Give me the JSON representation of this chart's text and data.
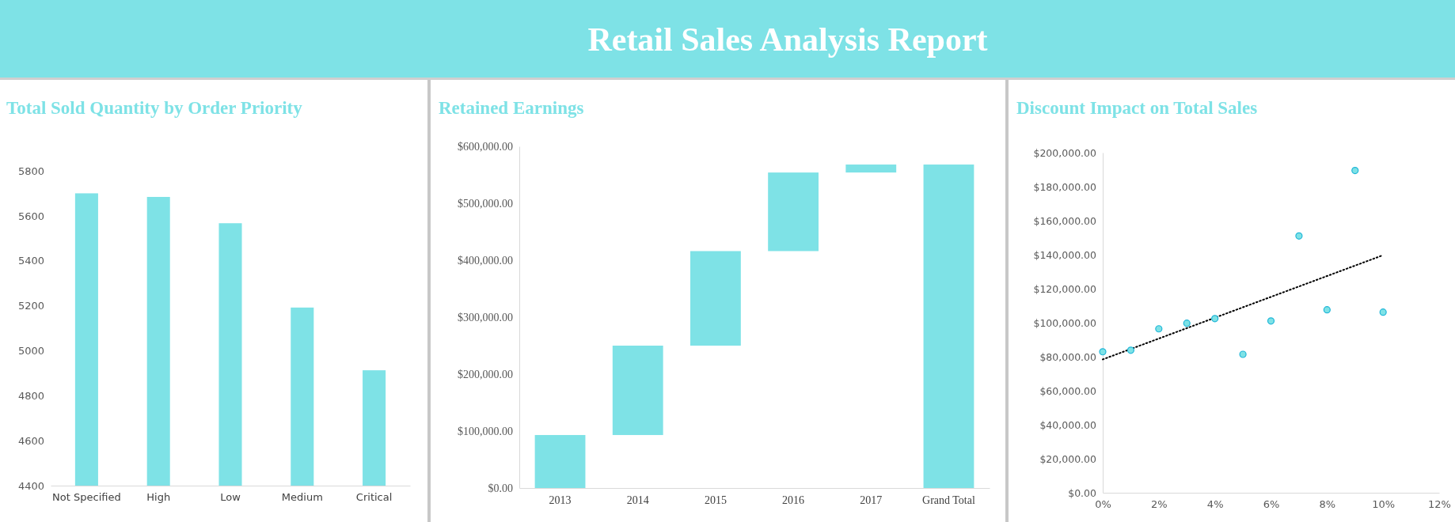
{
  "chart_data": [
    {
      "type": "other",
      "title": "Retail Sales Analysis Report"
    },
    {
      "type": "bar",
      "title": "Total Sold Quantity by Order Priority",
      "categories": [
        "Not Specified",
        "High",
        "Low",
        "Medium",
        "Critical"
      ],
      "values": [
        5700,
        5684,
        5567,
        5192,
        4913
      ],
      "color": "#7ee2e6",
      "ylim": [
        4400,
        5800
      ],
      "yticks": [
        4400,
        4600,
        4800,
        5000,
        5200,
        5400,
        5600,
        5800
      ],
      "grid": false
    },
    {
      "type": "bar",
      "title": "Retained Earnings",
      "categories": [
        "2013",
        "2014",
        "2015",
        "2016",
        "2017",
        "Grand Total"
      ],
      "values": [
        93000,
        157000,
        166000,
        138000,
        14000,
        568000
      ],
      "base": [
        0,
        93000,
        250000,
        416000,
        554000,
        0
      ],
      "color": "#7ee2e6",
      "ylim": [
        0,
        600000
      ],
      "yticks": [
        {
          "value": 0,
          "label": "$0.00"
        },
        {
          "value": 100000,
          "label": "$100,000.00"
        },
        {
          "value": 200000,
          "label": "$200,000.00"
        },
        {
          "value": 300000,
          "label": "$300,000.00"
        },
        {
          "value": 400000,
          "label": "$400,000.00"
        },
        {
          "value": 500000,
          "label": "$500,000.00"
        },
        {
          "value": 600000,
          "label": "$600,000.00"
        }
      ],
      "grid": false
    },
    {
      "type": "scatter",
      "title": "Discount Impact on Total Sales",
      "xlim": [
        0,
        12
      ],
      "xticks": [
        {
          "value": 0,
          "label": "0%"
        },
        {
          "value": 2,
          "label": "2%"
        },
        {
          "value": 4,
          "label": "4%"
        },
        {
          "value": 6,
          "label": "6%"
        },
        {
          "value": 8,
          "label": "8%"
        },
        {
          "value": 10,
          "label": "10%"
        },
        {
          "value": 12,
          "label": "12%"
        }
      ],
      "ylim": [
        0,
        200000
      ],
      "yticks": [
        {
          "value": 0,
          "label": "$0.00"
        },
        {
          "value": 20000,
          "label": "$20,000.00"
        },
        {
          "value": 40000,
          "label": "$40,000.00"
        },
        {
          "value": 60000,
          "label": "$60,000.00"
        },
        {
          "value": 80000,
          "label": "$80,000.00"
        },
        {
          "value": 100000,
          "label": "$100,000.00"
        },
        {
          "value": 120000,
          "label": "$120,000.00"
        },
        {
          "value": 140000,
          "label": "$140,000.00"
        },
        {
          "value": 160000,
          "label": "$160,000.00"
        },
        {
          "value": 180000,
          "label": "$180,000.00"
        },
        {
          "value": 200000,
          "label": "$200,000.00"
        }
      ],
      "grid": false,
      "series": [
        {
          "type": "scatter",
          "color": "#7ee2e6",
          "marker": "circle",
          "x": [
            0,
            1,
            2,
            3,
            4,
            5,
            6,
            7,
            8,
            9,
            10
          ],
          "values": [
            82900,
            83800,
            96400,
            99700,
            102400,
            81400,
            101000,
            151000,
            107600,
            189500,
            106200
          ]
        },
        {
          "type": "line",
          "color": "#000000",
          "marker": "none",
          "line_style": "dotted",
          "x": [
            0,
            10
          ],
          "values": [
            78400,
            139700
          ]
        }
      ]
    }
  ]
}
